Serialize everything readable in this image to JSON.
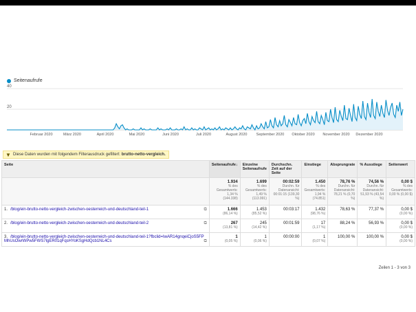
{
  "chart": {
    "legend": "Seitenaufrufe",
    "y_ticks": [
      "40",
      "20"
    ],
    "months": [
      "Februar 2020",
      "März 2020",
      "April 2020",
      "Mai 2020",
      "Juni 2020",
      "Juli 2020",
      "August 2020",
      "September 2020",
      "Oktober 2020",
      "November 2020",
      "Dezember 2020"
    ],
    "colors": {
      "line": "#058dc7",
      "fill": "#e3f2fa"
    }
  },
  "chart_data": {
    "type": "area",
    "title": "",
    "series": [
      {
        "name": "Seitenaufrufe",
        "values": [
          0,
          0,
          0,
          0,
          0,
          0,
          0,
          0,
          0,
          0,
          0,
          0,
          0,
          0,
          0,
          0,
          0,
          0,
          0,
          0,
          0,
          0,
          0,
          0,
          0,
          0,
          0,
          0,
          0,
          0,
          0,
          0,
          0,
          0,
          0,
          0,
          0,
          0,
          0,
          0,
          0,
          0,
          0,
          0,
          0,
          0,
          0,
          0,
          0,
          0,
          0,
          0,
          0,
          0,
          0,
          0,
          0,
          0,
          0,
          0,
          0,
          0,
          0,
          0,
          0,
          0,
          0,
          0,
          0,
          0,
          2,
          6,
          3,
          1,
          4,
          5,
          2,
          0,
          1,
          0,
          0,
          0,
          1,
          0,
          0,
          0,
          0,
          2,
          0,
          1,
          0,
          0,
          0,
          1,
          0,
          0,
          0,
          0,
          2,
          0,
          1,
          0,
          0,
          0,
          1,
          0,
          2,
          0,
          0,
          0,
          1,
          0,
          0,
          1,
          0,
          3,
          0,
          1,
          0,
          0,
          2,
          0,
          1,
          0,
          0,
          2,
          1,
          0,
          3,
          0,
          1,
          2,
          0,
          1,
          0,
          2,
          0,
          1,
          3,
          0,
          1,
          0,
          2,
          1,
          0,
          2,
          0,
          1,
          3,
          1,
          0,
          2,
          1,
          4,
          1,
          0,
          3,
          2,
          1,
          5,
          2,
          0,
          4,
          1,
          2,
          6,
          3,
          1,
          8,
          2,
          3,
          10,
          4,
          2,
          12,
          5,
          3,
          9,
          4,
          6,
          14,
          5,
          3,
          10,
          7,
          4,
          12,
          6,
          5,
          15,
          7,
          4,
          9,
          11,
          6,
          16,
          8,
          5,
          13,
          9,
          7,
          18,
          8,
          6,
          14,
          10,
          5,
          17,
          9,
          8,
          20,
          12,
          7,
          22,
          10,
          8,
          19,
          13,
          9,
          24,
          11,
          10,
          21,
          14,
          8,
          25,
          12,
          9,
          23,
          15,
          11,
          28,
          13,
          10,
          26,
          17,
          12,
          30,
          14,
          11,
          27,
          18,
          13,
          24,
          16,
          12,
          29,
          19,
          14,
          22,
          26,
          15,
          12,
          24,
          18,
          27,
          14,
          20
        ]
      }
    ],
    "ylim": [
      0,
      40
    ],
    "xlabel": "",
    "ylabel": ""
  },
  "filter": {
    "text": "Diese Daten wurden mit folgendem Filterausdruck gefiltert:",
    "expr": "brutto-netto-vergleich."
  },
  "table": {
    "headers": [
      "Seite",
      "Seitenaufrufe",
      "Einzelne Seitenaufrufe",
      "Durchschn. Zeit auf der Seite",
      "Einstiege",
      "Absprungrate",
      "% Ausstiege",
      "Seitenwert"
    ],
    "totals": [
      {
        "big": "1.934",
        "small": "% des Gesamtwerts: 1,34 % (144.338)"
      },
      {
        "big": "1.699",
        "small": "% des Gesamtwerts: 1,49 % (113.991)"
      },
      {
        "big": "00:02:59",
        "small": "Durchn. für Datenansicht: 00:01:15 (139,30 %)"
      },
      {
        "big": "1.450",
        "small": "% des Gesamtwerts: 1,94 % (74.851)"
      },
      {
        "big": "78,76 %",
        "small": "Durchn. für Datenansicht: 78,21 % (0,70 %)"
      },
      {
        "big": "74,56 %",
        "small": "Durchn. für Datenansicht: 51,93 % (43,54 %)"
      },
      {
        "big": "0,00 $",
        "small": "% des Gesamtwerts: 0,00 % (0,00 $)"
      }
    ],
    "rows": [
      {
        "n": "1.",
        "page": "/blog/ein-brutto-netto-vergleich-zwischen-oesterreich-und-deutschland-teil-1",
        "views": "1.666",
        "views_pct": "(86,14 %)",
        "unique": "1.453",
        "unique_pct": "(85,52 %)",
        "time": "00:03:17",
        "entr": "1.432",
        "entr_pct": "(98,76 %)",
        "bounce": "78,63 %",
        "exit": "77,37 %",
        "value": "0,00 $",
        "value_pct": "(0,00 %)"
      },
      {
        "n": "2.",
        "page": "/blog/ein-brutto-netto-vergleich-zwischen-oesterreich-und-deutschland-teil-2",
        "views": "267",
        "views_pct": "(13,81 %)",
        "unique": "245",
        "unique_pct": "(14,42 %)",
        "time": "00:01:59",
        "entr": "17",
        "entr_pct": "(1,17 %)",
        "bounce": "88,24 %",
        "exit": "56,93 %",
        "value": "0,00 $",
        "value_pct": "(0,00 %)"
      },
      {
        "n": "3.",
        "page": "/blog/ein-brutto-netto-vergleich-zwischen-oesterreich-und-deutschland-teil-1?fbclid=IwAR14gnqeiCjoS5FP MhUsOwrWPw5FWS7lgER01qFqsHYoKSgHdQcb1NL4Cs",
        "views": "1",
        "views_pct": "(0,05 %)",
        "unique": "1",
        "unique_pct": "(0,06 %)",
        "time": "00:00:00",
        "entr": "1",
        "entr_pct": "(0,07 %)",
        "bounce": "100,00 %",
        "exit": "100,00 %",
        "value": "0,00 $",
        "value_pct": "(0,00 %)"
      }
    ],
    "pager": "Zeilen 1 - 3 von 3"
  }
}
